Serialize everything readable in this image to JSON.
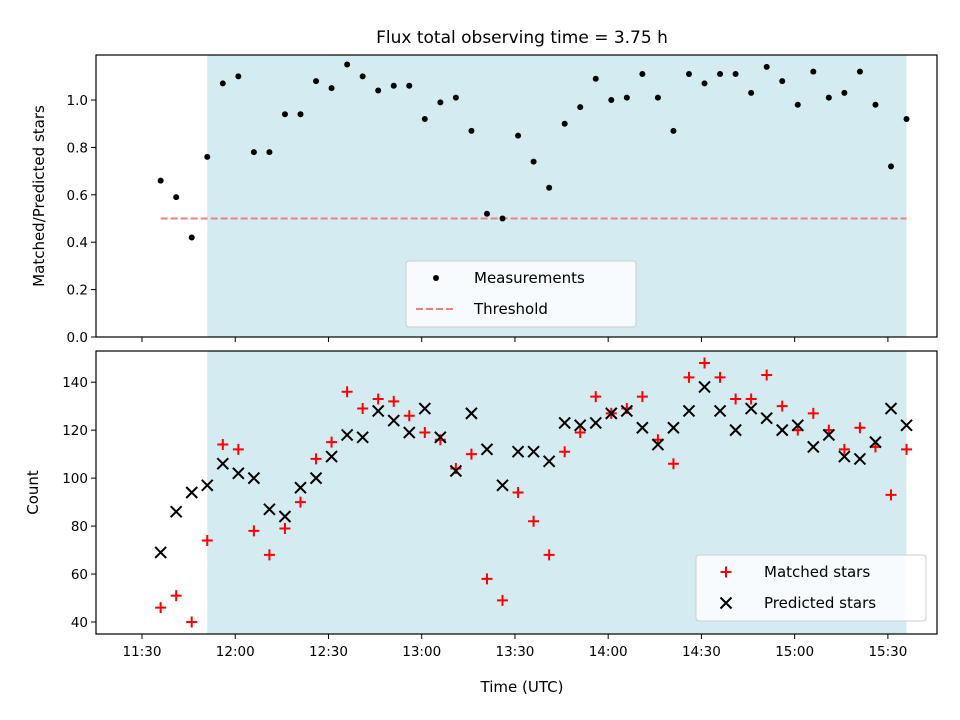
{
  "title": "Flux total observing time = 3.75 h",
  "colors": {
    "highlight": "#add8e6",
    "measurement": "#000000",
    "threshold": "#f08080",
    "matched": "#ff0000",
    "predicted": "#000000"
  },
  "x_ticks": [
    {
      "t": 690,
      "label": "11:30"
    },
    {
      "t": 720,
      "label": "12:00"
    },
    {
      "t": 750,
      "label": "12:30"
    },
    {
      "t": 780,
      "label": "13:00"
    },
    {
      "t": 810,
      "label": "13:30"
    },
    {
      "t": 840,
      "label": "14:00"
    },
    {
      "t": 870,
      "label": "14:30"
    },
    {
      "t": 900,
      "label": "15:00"
    },
    {
      "t": 930,
      "label": "15:30"
    }
  ],
  "xlabel": "Time (UTC)",
  "chart_data": [
    {
      "type": "scatter",
      "title": "Flux total observing time = 3.75 h",
      "xlabel": "",
      "ylabel": "Matched/Predicted stars",
      "ylim": [
        0,
        1.19
      ],
      "y_ticks": [
        "0.0",
        "0.2",
        "0.4",
        "0.6",
        "0.8",
        "1.0"
      ],
      "highlight_span": [
        "11:51",
        "15:36"
      ],
      "legend": {
        "placement": "lower-center",
        "entries": [
          "Measurements",
          "Threshold"
        ]
      },
      "threshold": {
        "name": "Threshold",
        "value": 0.5,
        "x_start": "11:36",
        "x_end": "15:36"
      },
      "series": [
        {
          "name": "Measurements",
          "marker": "dot",
          "x": [
            "11:36",
            "11:41",
            "11:46",
            "11:51",
            "11:56",
            "12:01",
            "12:06",
            "12:11",
            "12:16",
            "12:21",
            "12:26",
            "12:31",
            "12:36",
            "12:41",
            "12:46",
            "12:51",
            "12:56",
            "13:01",
            "13:06",
            "13:11",
            "13:16",
            "13:21",
            "13:26",
            "13:31",
            "13:36",
            "13:41",
            "13:46",
            "13:51",
            "13:56",
            "14:01",
            "14:06",
            "14:11",
            "14:16",
            "14:21",
            "14:26",
            "14:31",
            "14:36",
            "14:41",
            "14:46",
            "14:51",
            "14:56",
            "15:01",
            "15:06",
            "15:11",
            "15:16",
            "15:21",
            "15:26",
            "15:31",
            "15:36"
          ],
          "y": [
            0.66,
            0.59,
            0.42,
            0.76,
            1.07,
            1.1,
            0.78,
            0.78,
            0.94,
            0.94,
            1.08,
            1.05,
            1.15,
            1.1,
            1.04,
            1.06,
            1.06,
            0.92,
            0.99,
            1.01,
            0.87,
            0.52,
            0.5,
            0.85,
            0.74,
            0.63,
            0.9,
            0.97,
            1.09,
            1.0,
            1.01,
            1.11,
            1.01,
            0.87,
            1.11,
            1.07,
            1.11,
            1.11,
            1.03,
            1.14,
            1.08,
            0.98,
            1.12,
            1.01,
            1.03,
            1.12,
            0.98,
            0.72,
            0.92
          ]
        }
      ]
    },
    {
      "type": "scatter",
      "xlabel": "Time (UTC)",
      "ylabel": "Count",
      "ylim": [
        35,
        153
      ],
      "y_ticks": [
        "40",
        "60",
        "80",
        "100",
        "120",
        "140"
      ],
      "highlight_span": [
        "11:51",
        "15:36"
      ],
      "legend": {
        "placement": "lower-right",
        "entries": [
          "Matched stars",
          "Predicted stars"
        ]
      },
      "series": [
        {
          "name": "Matched stars",
          "marker": "plus",
          "x": [
            "11:36",
            "11:41",
            "11:46",
            "11:51",
            "11:56",
            "12:01",
            "12:06",
            "12:11",
            "12:16",
            "12:21",
            "12:26",
            "12:31",
            "12:36",
            "12:41",
            "12:46",
            "12:51",
            "12:56",
            "13:01",
            "13:06",
            "13:11",
            "13:16",
            "13:21",
            "13:26",
            "13:31",
            "13:36",
            "13:41",
            "13:46",
            "13:51",
            "13:56",
            "14:01",
            "14:06",
            "14:11",
            "14:16",
            "14:21",
            "14:26",
            "14:31",
            "14:36",
            "14:41",
            "14:46",
            "14:51",
            "14:56",
            "15:01",
            "15:06",
            "15:11",
            "15:16",
            "15:21",
            "15:26",
            "15:31",
            "15:36"
          ],
          "y": [
            46,
            51,
            40,
            74,
            114,
            112,
            78,
            68,
            79,
            90,
            108,
            115,
            136,
            129,
            133,
            132,
            126,
            119,
            116,
            104,
            110,
            58,
            49,
            94,
            82,
            68,
            111,
            119,
            134,
            127,
            129,
            134,
            116,
            106,
            142,
            148,
            142,
            133,
            133,
            143,
            130,
            120,
            127,
            120,
            112,
            121,
            113,
            93,
            112
          ]
        },
        {
          "name": "Predicted stars",
          "marker": "cross",
          "x": [
            "11:36",
            "11:41",
            "11:46",
            "11:51",
            "11:56",
            "12:01",
            "12:06",
            "12:11",
            "12:16",
            "12:21",
            "12:26",
            "12:31",
            "12:36",
            "12:41",
            "12:46",
            "12:51",
            "12:56",
            "13:01",
            "13:06",
            "13:11",
            "13:16",
            "13:21",
            "13:26",
            "13:31",
            "13:36",
            "13:41",
            "13:46",
            "13:51",
            "13:56",
            "14:01",
            "14:06",
            "14:11",
            "14:16",
            "14:21",
            "14:26",
            "14:31",
            "14:36",
            "14:41",
            "14:46",
            "14:51",
            "14:56",
            "15:01",
            "15:06",
            "15:11",
            "15:16",
            "15:21",
            "15:26",
            "15:31",
            "15:36"
          ],
          "y": [
            69,
            86,
            94,
            97,
            106,
            102,
            100,
            87,
            84,
            96,
            100,
            109,
            118,
            117,
            128,
            124,
            119,
            129,
            117,
            103,
            127,
            112,
            97,
            111,
            111,
            107,
            123,
            122,
            123,
            127,
            128,
            121,
            114,
            121,
            128,
            138,
            128,
            120,
            129,
            125,
            120,
            122,
            113,
            118,
            109,
            108,
            115,
            129,
            122
          ]
        }
      ]
    }
  ]
}
